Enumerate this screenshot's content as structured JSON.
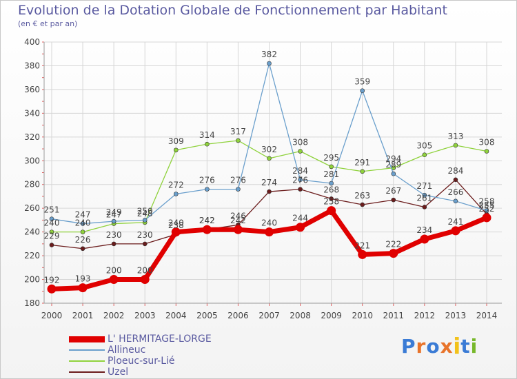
{
  "header": {
    "title": "Evolution de la Dotation Globale de Fonctionnement par Habitant",
    "subtitle": "(en € et par an)"
  },
  "brand": {
    "text": "Proxiti",
    "letter_colors": [
      "#3a7bd5",
      "#e8732a",
      "#3a7bd5",
      "#e8732a",
      "#f2c21b",
      "#3a7bd5",
      "#77b82a"
    ]
  },
  "chart_data": {
    "type": "line",
    "x": [
      "2000",
      "2001",
      "2002",
      "2003",
      "2004",
      "2005",
      "2006",
      "2007",
      "2008",
      "2009",
      "2010",
      "2011",
      "2012",
      "2013",
      "2014"
    ],
    "ylim": [
      180,
      400
    ],
    "yticks": [
      180,
      200,
      220,
      240,
      260,
      280,
      300,
      320,
      340,
      360,
      380,
      400
    ],
    "grid": true,
    "legend_position": "bottom-left",
    "series": [
      {
        "name": "Uzel",
        "color": "#6b1c1c",
        "values": [
          229,
          226,
          230,
          230,
          238,
          242,
          246,
          274,
          276,
          268,
          263,
          267,
          261,
          284,
          255
        ]
      },
      {
        "name": "Ploeuc-sur-Lié",
        "color": "#8fd23c",
        "values": [
          240,
          240,
          247,
          248,
          309,
          314,
          317,
          302,
          308,
          295,
          291,
          294,
          305,
          313,
          308
        ]
      },
      {
        "name": "Allineuc",
        "color": "#6a9fcc",
        "values": [
          251,
          247,
          249,
          250,
          272,
          276,
          276,
          382,
          284,
          281,
          359,
          289,
          271,
          266,
          258
        ]
      },
      {
        "name": "L' HERMITAGE-LORGE",
        "color": "#e00000",
        "values": [
          192,
          193,
          200,
          200,
          240,
          242,
          242,
          240,
          244,
          258,
          221,
          222,
          234,
          241,
          252
        ]
      }
    ],
    "legend_order": [
      "L' HERMITAGE-LORGE",
      "Allineuc",
      "Ploeuc-sur-Lié",
      "Uzel"
    ]
  }
}
